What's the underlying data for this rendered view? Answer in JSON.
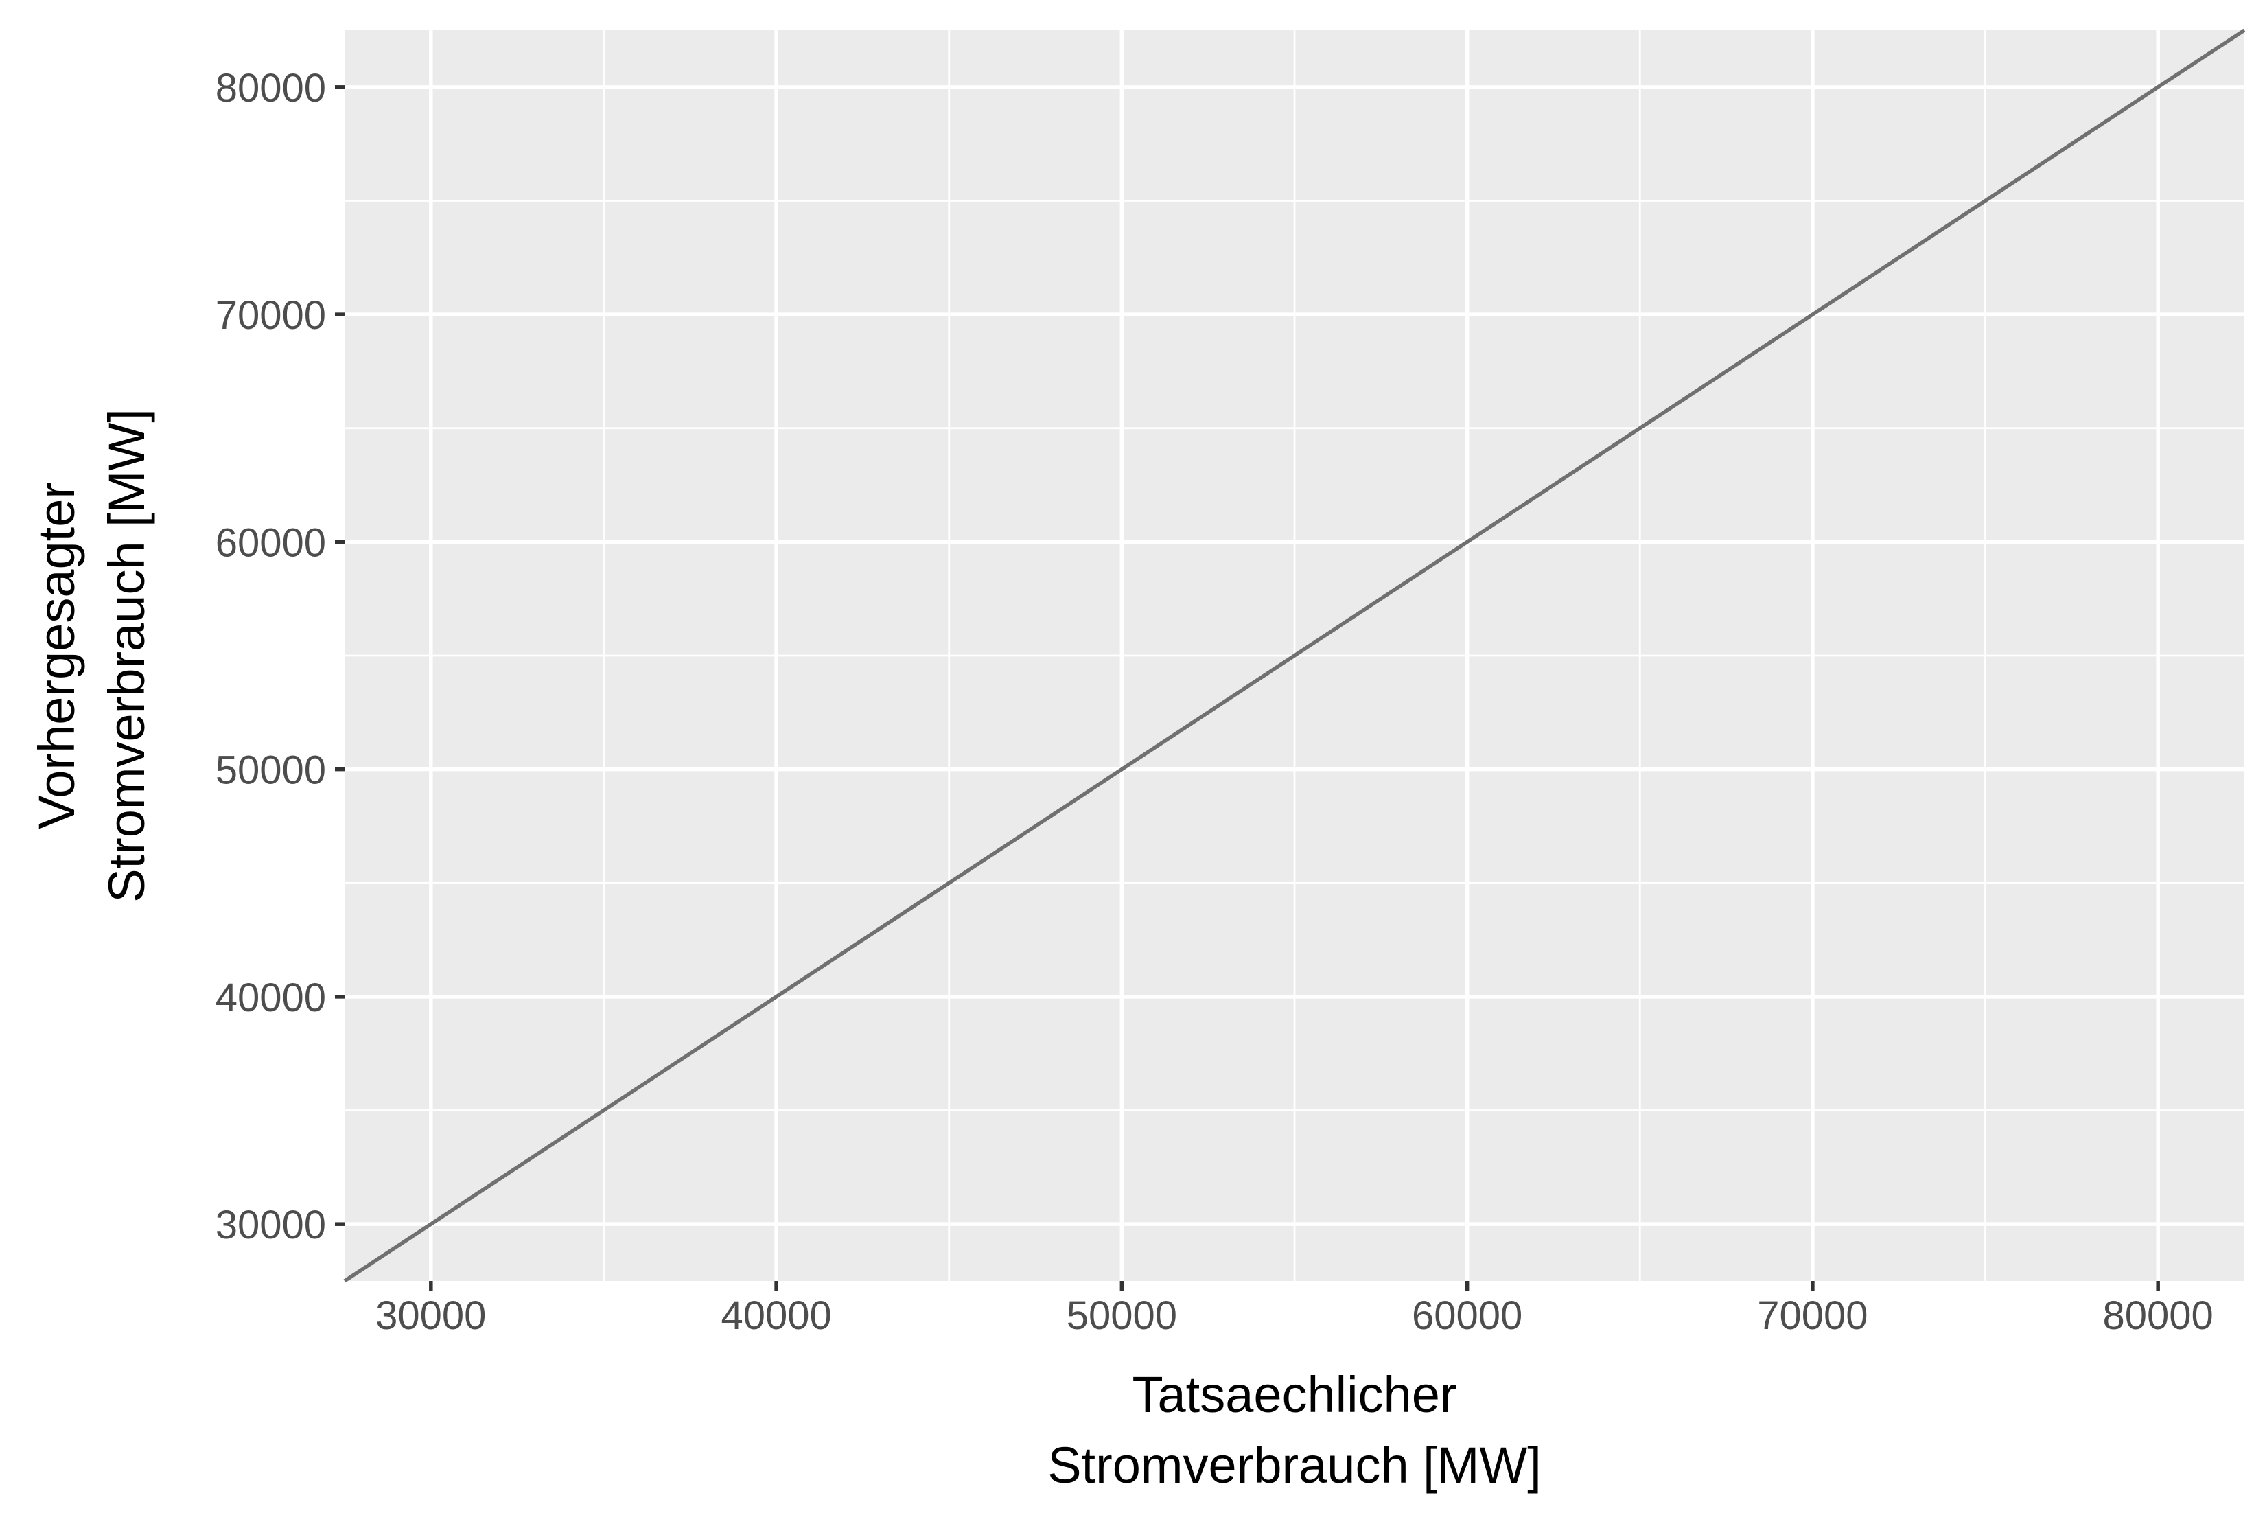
{
  "chart_data": {
    "type": "line",
    "title": "",
    "xlabel_lines": [
      "Tatsaechlicher",
      "Stromverbrauch [MW]"
    ],
    "ylabel_lines": [
      "Vorhergesagter",
      "Stromverbrauch [MW]"
    ],
    "xlim": [
      27500,
      82500
    ],
    "ylim": [
      27500,
      82500
    ],
    "x_ticks": [
      30000,
      40000,
      50000,
      60000,
      70000,
      80000
    ],
    "y_ticks": [
      30000,
      40000,
      50000,
      60000,
      70000,
      80000
    ],
    "x_tick_labels": [
      "30000",
      "40000",
      "50000",
      "60000",
      "70000",
      "80000"
    ],
    "y_tick_labels": [
      "30000",
      "40000",
      "50000",
      "60000",
      "70000",
      "80000"
    ],
    "x_minor": [
      35000,
      45000,
      55000,
      65000,
      75000
    ],
    "y_minor": [
      35000,
      45000,
      55000,
      65000,
      75000
    ],
    "grid": true,
    "series": [
      {
        "x": [
          27500,
          82500
        ],
        "y": [
          27500,
          82500
        ],
        "color": "#707070"
      }
    ]
  }
}
